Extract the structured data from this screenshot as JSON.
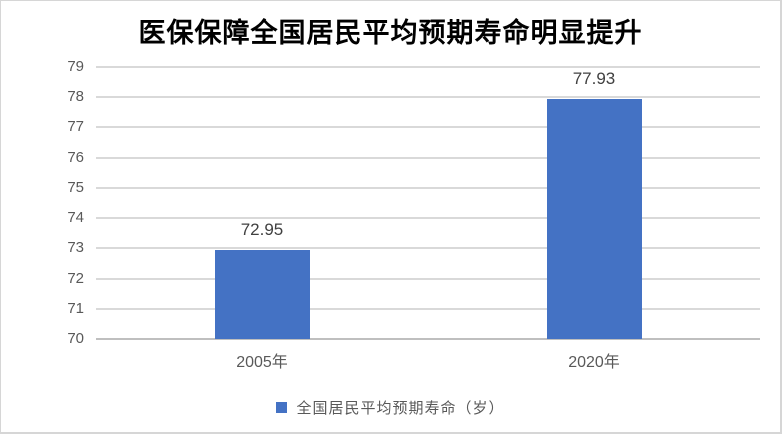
{
  "title": "医保保障全国居民平均预期寿命明显提升",
  "colors": {
    "bar": "#4472C4",
    "gridline": "#D9D9D9",
    "axis_line": "#BFBFBF",
    "axis_label": "#595959",
    "data_label": "#404040",
    "title": "#000000",
    "background": "#FFFFFF"
  },
  "legend": {
    "label": "全国居民平均预期寿命（岁）",
    "marker": "square",
    "marker_color": "#4472C4"
  },
  "chart_data": {
    "type": "bar",
    "title": "医保保障全国居民平均预期寿命明显提升",
    "categories": [
      "2005年",
      "2020年"
    ],
    "series": [
      {
        "name": "全国居民平均预期寿命（岁）",
        "values": [
          72.95,
          77.93
        ]
      }
    ],
    "data_labels": [
      "72.95",
      "77.93"
    ],
    "xlabel": "",
    "ylabel": "",
    "ylim": [
      70,
      79
    ],
    "yticks": [
      70,
      71,
      72,
      73,
      74,
      75,
      76,
      77,
      78,
      79
    ],
    "grid": "horizontal",
    "legend_position": "bottom"
  }
}
